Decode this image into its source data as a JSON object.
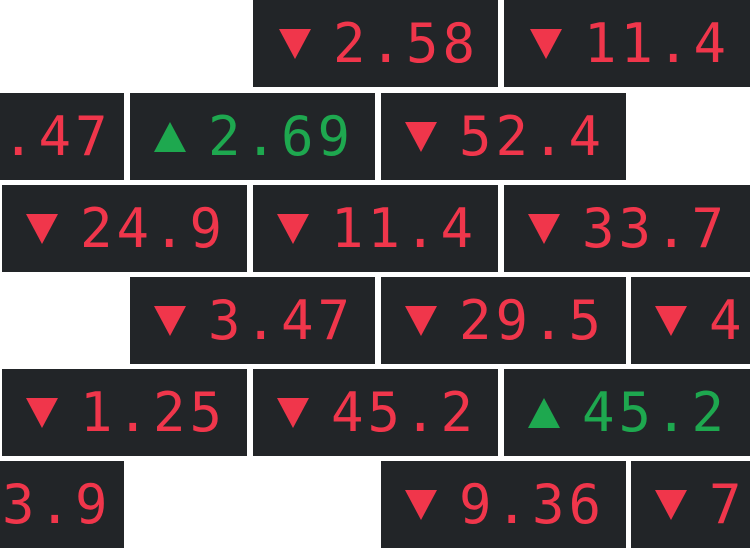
{
  "colors": {
    "down": "#f0364b",
    "up": "#1ea84f",
    "tile_bg": "#222528",
    "page_bg": "#ffffff"
  },
  "tiles": [
    {
      "direction": "down",
      "value": "2.58"
    },
    {
      "direction": "down",
      "value": "11.4"
    },
    {
      "direction": "none",
      "value": ".47"
    },
    {
      "direction": "up",
      "value": "2.69"
    },
    {
      "direction": "down",
      "value": "52.4"
    },
    {
      "direction": "down",
      "value": "24.9"
    },
    {
      "direction": "down",
      "value": "11.4"
    },
    {
      "direction": "down",
      "value": "33.7"
    },
    {
      "direction": "down",
      "value": "3.47"
    },
    {
      "direction": "down",
      "value": "29.5"
    },
    {
      "direction": "down",
      "value": "4"
    },
    {
      "direction": "down",
      "value": "1.25"
    },
    {
      "direction": "down",
      "value": "45.2"
    },
    {
      "direction": "up",
      "value": "45.2"
    },
    {
      "direction": "none",
      "value": "3.9"
    },
    {
      "direction": "down",
      "value": "9.36"
    },
    {
      "direction": "down",
      "value": "7"
    }
  ]
}
